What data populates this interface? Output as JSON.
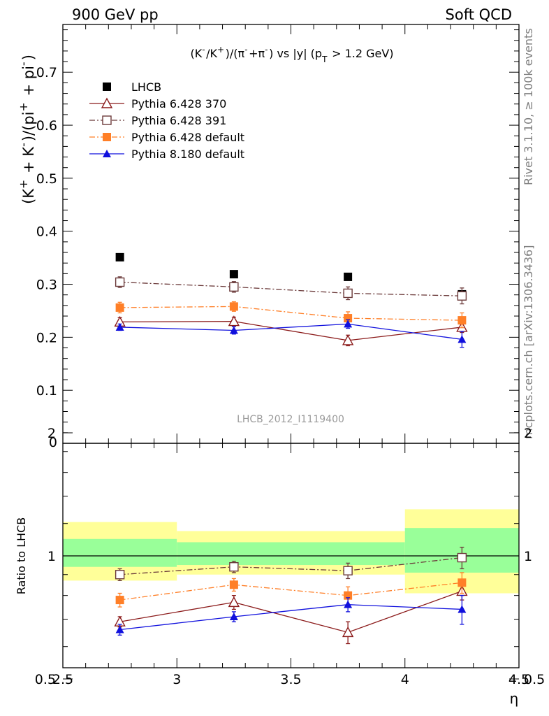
{
  "header": {
    "left": "900 GeV pp",
    "right": "Soft QCD"
  },
  "side_labels": {
    "rivet": "Rivet 3.1.10, ≥ 100k events",
    "mcplots": "mcplots.cern.ch [arXiv:1306.3436]"
  },
  "chart_data": [
    {
      "type": "scatter",
      "title": "(K⁻/K⁺)/(π⁻+π⁻) vs |y| (p_T > 1.2 GeV)",
      "ylabel": "(K⁺ + K⁻)/(pi⁺ + pi⁻)",
      "xlabel": "",
      "watermark": "LHCB_2012_I1119400",
      "xlim": [
        2.5,
        4.5
      ],
      "ylim": [
        0,
        0.79
      ],
      "yticks": [
        0.1,
        0.2,
        0.3,
        0.4,
        0.5,
        0.6,
        0.7
      ],
      "legend_position": "top-left",
      "x": [
        2.75,
        3.25,
        3.75,
        4.25
      ],
      "series": [
        {
          "name": "LHCB",
          "color": "#000000",
          "marker": "filled-square",
          "line": "none",
          "values": [
            0.351,
            0.319,
            0.314,
            0.281
          ],
          "err": [
            0,
            0,
            0,
            0
          ]
        },
        {
          "name": "Pythia 6.428 370",
          "color": "#8b1a1a",
          "marker": "open-triangle",
          "line": "solid",
          "values": [
            0.229,
            0.23,
            0.194,
            0.219
          ],
          "err": [
            0.008,
            0.008,
            0.01,
            0.01
          ]
        },
        {
          "name": "Pythia 6.428 391",
          "color": "#6b3a3a",
          "marker": "open-square",
          "line": "dash-dot",
          "values": [
            0.304,
            0.295,
            0.283,
            0.278
          ],
          "err": [
            0.01,
            0.01,
            0.012,
            0.015
          ]
        },
        {
          "name": "Pythia 6.428 default",
          "color": "#ff7f27",
          "marker": "filled-square",
          "line": "dash-dot",
          "values": [
            0.256,
            0.258,
            0.236,
            0.232
          ],
          "err": [
            0.01,
            0.009,
            0.012,
            0.014
          ]
        },
        {
          "name": "Pythia 8.180 default",
          "color": "#1010dd",
          "marker": "filled-triangle",
          "line": "solid",
          "values": [
            0.219,
            0.213,
            0.225,
            0.196
          ],
          "err": [
            0.006,
            0.007,
            0.008,
            0.015
          ]
        }
      ]
    },
    {
      "type": "scatter",
      "ylabel": "Ratio to LHCB",
      "xlabel": "η",
      "xlim": [
        2.5,
        4.5
      ],
      "ylim": [
        0.35,
        2.3
      ],
      "yticks": [
        0.5,
        1,
        2
      ],
      "xticks": [
        2.5,
        3,
        3.5,
        4,
        4.5
      ],
      "reference_line": 1,
      "bands": {
        "edges": [
          2.5,
          3.0,
          4.0,
          4.5
        ],
        "yellow": [
          [
            0.87,
            1.21
          ],
          [
            0.9,
            1.15
          ],
          [
            0.81,
            1.3
          ]
        ],
        "green": [
          [
            0.94,
            1.1
          ],
          [
            0.95,
            1.08
          ],
          [
            0.91,
            1.17
          ]
        ]
      },
      "x": [
        2.75,
        3.25,
        3.75,
        4.25
      ],
      "series": [
        {
          "name": "Pythia 6.428 370",
          "values": [
            0.69,
            0.77,
            0.65,
            0.82
          ],
          "err": [
            0.02,
            0.03,
            0.04,
            0.04
          ]
        },
        {
          "name": "Pythia 6.428 391",
          "values": [
            0.9,
            0.94,
            0.92,
            0.99
          ],
          "err": [
            0.03,
            0.03,
            0.04,
            0.06
          ]
        },
        {
          "name": "Pythia 6.428 default",
          "values": [
            0.78,
            0.85,
            0.8,
            0.86
          ],
          "err": [
            0.03,
            0.03,
            0.04,
            0.05
          ]
        },
        {
          "name": "Pythia 8.180 default",
          "values": [
            0.66,
            0.71,
            0.76,
            0.74
          ],
          "err": [
            0.02,
            0.02,
            0.03,
            0.06
          ]
        }
      ]
    }
  ]
}
